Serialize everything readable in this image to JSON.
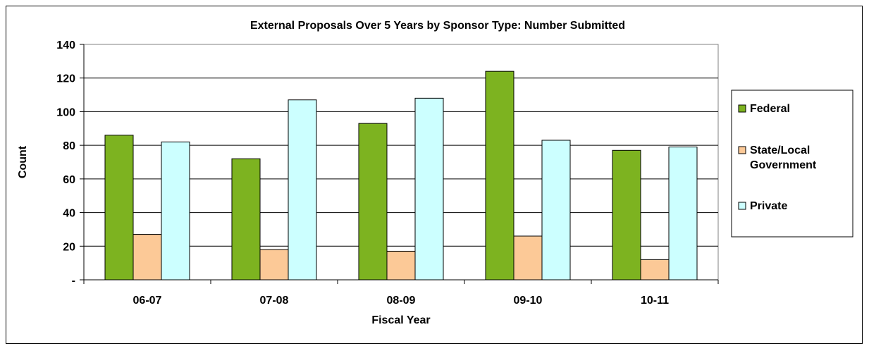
{
  "chart_data": {
    "type": "bar",
    "title": "External Proposals Over 5 Years by Sponsor Type: Number Submitted",
    "xlabel": "Fiscal Year",
    "ylabel": "Count",
    "categories": [
      "06-07",
      "07-08",
      "08-09",
      "09-10",
      "10-11"
    ],
    "ylim": [
      0,
      140
    ],
    "yticks": [
      0,
      20,
      40,
      60,
      80,
      100,
      120,
      140
    ],
    "ytick_labels": [
      "-",
      "20",
      "40",
      "60",
      "80",
      "100",
      "120",
      "140"
    ],
    "grid": true,
    "legend_position": "right",
    "series": [
      {
        "name": "Federal",
        "values": [
          86,
          72,
          93,
          124,
          77
        ],
        "color": "#7db320"
      },
      {
        "name": "State/Local Government",
        "values": [
          27,
          18,
          17,
          26,
          12
        ],
        "color": "#fcc997"
      },
      {
        "name": "Private",
        "values": [
          82,
          107,
          108,
          83,
          79
        ],
        "color": "#ccffff"
      }
    ]
  }
}
